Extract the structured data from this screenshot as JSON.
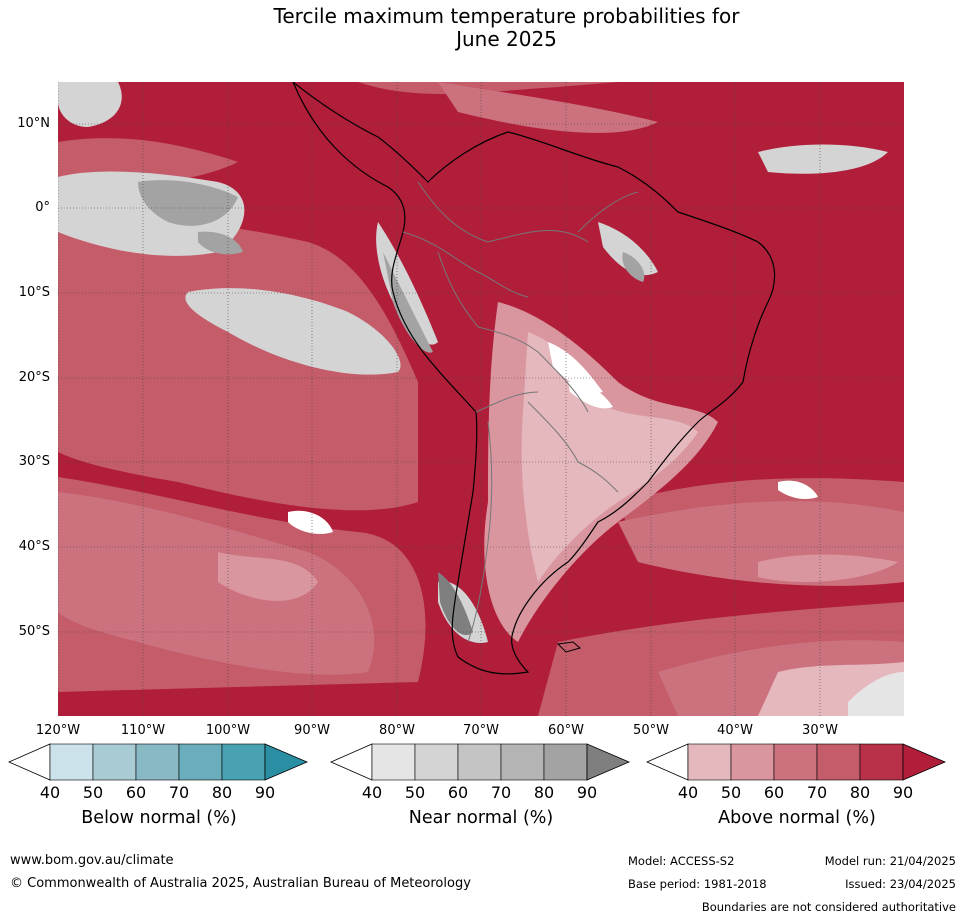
{
  "title_line1": "Tercile maximum temperature probabilities for",
  "title_line2": "June 2025",
  "lat_labels": [
    "10°N",
    "0°",
    "10°S",
    "20°S",
    "30°S",
    "40°S",
    "50°S"
  ],
  "lon_labels": [
    "120°W",
    "110°W",
    "100°W",
    "90°W",
    "80°W",
    "70°W",
    "60°W",
    "50°W",
    "40°W",
    "30°W"
  ],
  "colorbars": [
    {
      "title": "Below normal (%)",
      "ticks": [
        "40",
        "50",
        "60",
        "70",
        "80",
        "90"
      ],
      "colors": [
        "#ffffff",
        "#cbe2ea",
        "#a9cbd4",
        "#8ab9c6",
        "#6aadbc",
        "#48a2b2",
        "#2b8fa3"
      ]
    },
    {
      "title": "Near normal (%)",
      "ticks": [
        "40",
        "50",
        "60",
        "70",
        "80",
        "90"
      ],
      "colors": [
        "#ffffff",
        "#e5e5e5",
        "#d4d4d4",
        "#c4c4c4",
        "#b4b4b4",
        "#a3a3a3",
        "#7f7f7f"
      ]
    },
    {
      "title": "Above normal (%)",
      "ticks": [
        "40",
        "50",
        "60",
        "70",
        "80",
        "90"
      ],
      "colors": [
        "#ffffff",
        "#e5b8bd",
        "#d9969f",
        "#cc727f",
        "#c45c6a",
        "#b83148",
        "#b01e3a"
      ]
    }
  ],
  "footer": {
    "website": "www.bom.gov.au/climate",
    "copyright": "© Commonwealth of Australia 2025, Australian Bureau of Meteorology",
    "model": "Model: ACCESS-S2",
    "model_run": "Model run: 21/04/2025",
    "base_period": "Base period: 1981-2018",
    "issued": "Issued: 23/04/2025",
    "disclaimer": "Boundaries are not considered authoritative"
  }
}
